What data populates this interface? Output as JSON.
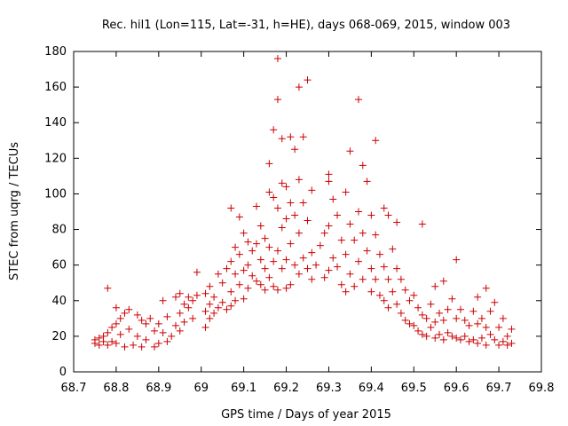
{
  "chart_data": {
    "type": "scatter",
    "title": "Rec. hil1 (Lon=115, Lat=-31, h=HE), days 068-069, 2015, window 003",
    "xlabel": "GPS time / Days of year 2015",
    "ylabel": "STEC from uqrg / TECUs",
    "xlim": [
      68.7,
      69.8
    ],
    "ylim": [
      0,
      180
    ],
    "xticks": [
      "68.7",
      "68.8",
      "68.9",
      "69",
      "69.1",
      "69.2",
      "69.3",
      "69.4",
      "69.5",
      "69.6",
      "69.7",
      "69.8"
    ],
    "yticks": [
      "0",
      "20",
      "40",
      "60",
      "80",
      "100",
      "120",
      "140",
      "160",
      "180"
    ],
    "grid": false,
    "marker": "plus",
    "color": "#cc0000",
    "series": [
      {
        "points": [
          [
            68.75,
            18
          ],
          [
            68.75,
            16
          ],
          [
            68.76,
            19
          ],
          [
            68.76,
            15
          ],
          [
            68.77,
            17
          ],
          [
            68.77,
            20
          ],
          [
            68.78,
            22
          ],
          [
            68.78,
            15
          ],
          [
            68.78,
            47
          ],
          [
            68.79,
            25
          ],
          [
            68.79,
            17
          ],
          [
            68.8,
            36
          ],
          [
            68.8,
            27
          ],
          [
            68.8,
            16
          ],
          [
            68.81,
            30
          ],
          [
            68.81,
            21
          ],
          [
            68.82,
            33
          ],
          [
            68.82,
            14
          ],
          [
            68.83,
            35
          ],
          [
            68.83,
            24
          ],
          [
            68.84,
            15
          ],
          [
            68.85,
            32
          ],
          [
            68.85,
            20
          ],
          [
            68.86,
            29
          ],
          [
            68.86,
            14
          ],
          [
            68.87,
            27
          ],
          [
            68.87,
            18
          ],
          [
            68.88,
            30
          ],
          [
            68.89,
            23
          ],
          [
            68.89,
            14
          ],
          [
            68.9,
            27
          ],
          [
            68.9,
            16
          ],
          [
            68.91,
            40
          ],
          [
            68.91,
            22
          ],
          [
            68.92,
            31
          ],
          [
            68.92,
            17
          ],
          [
            68.93,
            20
          ],
          [
            68.94,
            42
          ],
          [
            68.94,
            26
          ],
          [
            68.95,
            44
          ],
          [
            68.95,
            33
          ],
          [
            68.95,
            23
          ],
          [
            68.96,
            38
          ],
          [
            68.96,
            28
          ],
          [
            68.97,
            36
          ],
          [
            68.97,
            42
          ],
          [
            68.98,
            40
          ],
          [
            68.98,
            30
          ],
          [
            68.99,
            56
          ],
          [
            68.99,
            43
          ],
          [
            69.01,
            44
          ],
          [
            69.01,
            34
          ],
          [
            69.01,
            25
          ],
          [
            69.02,
            48
          ],
          [
            69.02,
            38
          ],
          [
            69.02,
            30
          ],
          [
            69.03,
            42
          ],
          [
            69.03,
            33
          ],
          [
            69.04,
            55
          ],
          [
            69.04,
            36
          ],
          [
            69.05,
            50
          ],
          [
            69.05,
            39
          ],
          [
            69.06,
            58
          ],
          [
            69.06,
            35
          ],
          [
            69.07,
            92
          ],
          [
            69.07,
            62
          ],
          [
            69.07,
            45
          ],
          [
            69.07,
            37
          ],
          [
            69.08,
            70
          ],
          [
            69.08,
            55
          ],
          [
            69.08,
            40
          ],
          [
            69.09,
            87
          ],
          [
            69.09,
            66
          ],
          [
            69.09,
            49
          ],
          [
            69.1,
            78
          ],
          [
            69.1,
            57
          ],
          [
            69.1,
            41
          ],
          [
            69.11,
            73
          ],
          [
            69.11,
            60
          ],
          [
            69.11,
            47
          ],
          [
            69.12,
            68
          ],
          [
            69.12,
            54
          ],
          [
            69.13,
            93
          ],
          [
            69.13,
            72
          ],
          [
            69.13,
            51
          ],
          [
            69.14,
            82
          ],
          [
            69.14,
            63
          ],
          [
            69.14,
            49
          ],
          [
            69.15,
            75
          ],
          [
            69.15,
            58
          ],
          [
            69.15,
            46
          ],
          [
            69.16,
            117
          ],
          [
            69.16,
            101
          ],
          [
            69.16,
            70
          ],
          [
            69.16,
            53
          ],
          [
            69.17,
            136
          ],
          [
            69.17,
            98
          ],
          [
            69.17,
            62
          ],
          [
            69.17,
            48
          ],
          [
            69.18,
            176
          ],
          [
            69.18,
            153
          ],
          [
            69.18,
            92
          ],
          [
            69.18,
            68
          ],
          [
            69.18,
            46
          ],
          [
            69.19,
            131
          ],
          [
            69.19,
            106
          ],
          [
            69.19,
            81
          ],
          [
            69.19,
            58
          ],
          [
            69.2,
            104
          ],
          [
            69.2,
            86
          ],
          [
            69.2,
            63
          ],
          [
            69.2,
            47
          ],
          [
            69.21,
            132
          ],
          [
            69.21,
            95
          ],
          [
            69.21,
            72
          ],
          [
            69.21,
            49
          ],
          [
            69.22,
            125
          ],
          [
            69.22,
            88
          ],
          [
            69.22,
            60
          ],
          [
            69.23,
            160
          ],
          [
            69.23,
            108
          ],
          [
            69.23,
            78
          ],
          [
            69.23,
            55
          ],
          [
            69.24,
            132
          ],
          [
            69.24,
            95
          ],
          [
            69.24,
            64
          ],
          [
            69.25,
            164
          ],
          [
            69.25,
            85
          ],
          [
            69.25,
            58
          ],
          [
            69.26,
            102
          ],
          [
            69.26,
            67
          ],
          [
            69.26,
            52
          ],
          [
            69.27,
            60
          ],
          [
            69.28,
            71
          ],
          [
            69.29,
            78
          ],
          [
            69.29,
            53
          ],
          [
            69.3,
            111
          ],
          [
            69.3,
            107
          ],
          [
            69.3,
            82
          ],
          [
            69.3,
            57
          ],
          [
            69.31,
            97
          ],
          [
            69.31,
            64
          ],
          [
            69.32,
            88
          ],
          [
            69.32,
            59
          ],
          [
            69.33,
            74
          ],
          [
            69.33,
            49
          ],
          [
            69.34,
            101
          ],
          [
            69.34,
            66
          ],
          [
            69.34,
            45
          ],
          [
            69.35,
            124
          ],
          [
            69.35,
            83
          ],
          [
            69.35,
            55
          ],
          [
            69.36,
            74
          ],
          [
            69.36,
            48
          ],
          [
            69.37,
            153
          ],
          [
            69.37,
            90
          ],
          [
            69.37,
            62
          ],
          [
            69.38,
            116
          ],
          [
            69.38,
            78
          ],
          [
            69.38,
            52
          ],
          [
            69.39,
            107
          ],
          [
            69.39,
            68
          ],
          [
            69.4,
            88
          ],
          [
            69.4,
            58
          ],
          [
            69.4,
            45
          ],
          [
            69.41,
            130
          ],
          [
            69.41,
            77
          ],
          [
            69.41,
            52
          ],
          [
            69.42,
            66
          ],
          [
            69.42,
            43
          ],
          [
            69.43,
            92
          ],
          [
            69.43,
            59
          ],
          [
            69.43,
            40
          ],
          [
            69.44,
            88
          ],
          [
            69.44,
            52
          ],
          [
            69.44,
            36
          ],
          [
            69.45,
            69
          ],
          [
            69.45,
            45
          ],
          [
            69.46,
            84
          ],
          [
            69.46,
            58
          ],
          [
            69.46,
            38
          ],
          [
            69.47,
            52
          ],
          [
            69.47,
            33
          ],
          [
            69.48,
            46
          ],
          [
            69.48,
            29
          ],
          [
            69.49,
            40
          ],
          [
            69.49,
            27
          ],
          [
            69.5,
            43
          ],
          [
            69.5,
            26
          ],
          [
            69.51,
            36
          ],
          [
            69.51,
            23
          ],
          [
            69.52,
            83
          ],
          [
            69.52,
            32
          ],
          [
            69.52,
            21
          ],
          [
            69.53,
            30
          ],
          [
            69.53,
            20
          ],
          [
            69.54,
            38
          ],
          [
            69.54,
            25
          ],
          [
            69.55,
            48
          ],
          [
            69.55,
            28
          ],
          [
            69.55,
            19
          ],
          [
            69.56,
            33
          ],
          [
            69.56,
            21
          ],
          [
            69.57,
            51
          ],
          [
            69.57,
            29
          ],
          [
            69.57,
            18
          ],
          [
            69.58,
            35
          ],
          [
            69.58,
            22
          ],
          [
            69.59,
            41
          ],
          [
            69.59,
            20
          ],
          [
            69.6,
            63
          ],
          [
            69.6,
            30
          ],
          [
            69.6,
            19
          ],
          [
            69.61,
            35
          ],
          [
            69.61,
            18
          ],
          [
            69.62,
            29
          ],
          [
            69.62,
            20
          ],
          [
            69.63,
            26
          ],
          [
            69.63,
            17
          ],
          [
            69.64,
            34
          ],
          [
            69.64,
            18
          ],
          [
            69.65,
            42
          ],
          [
            69.65,
            27
          ],
          [
            69.65,
            16
          ],
          [
            69.66,
            30
          ],
          [
            69.66,
            19
          ],
          [
            69.67,
            47
          ],
          [
            69.67,
            25
          ],
          [
            69.67,
            15
          ],
          [
            69.68,
            34
          ],
          [
            69.68,
            21
          ],
          [
            69.69,
            39
          ],
          [
            69.69,
            18
          ],
          [
            69.7,
            25
          ],
          [
            69.7,
            15
          ],
          [
            69.71,
            30
          ],
          [
            69.71,
            17
          ],
          [
            69.72,
            20
          ],
          [
            69.72,
            15
          ],
          [
            69.73,
            24
          ],
          [
            69.73,
            16
          ]
        ]
      }
    ]
  }
}
